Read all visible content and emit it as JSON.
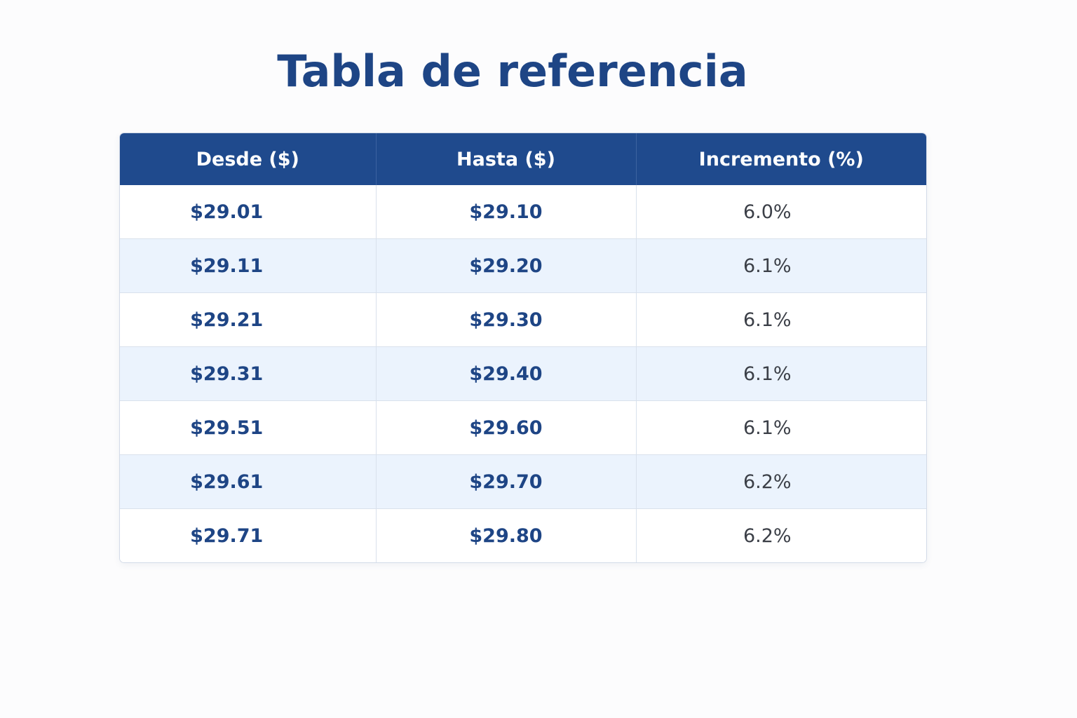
{
  "title": "Tabla de referencia",
  "colors": {
    "title": "#1e4585",
    "header_bg": "#1f4a8d",
    "header_text": "#ffffff",
    "stripe": "#ebf3fd",
    "value_text": "#1e4585",
    "percent_text": "#3b3f47"
  },
  "table": {
    "headers": [
      "Desde ($)",
      "Hasta ($)",
      "Incremento (%)"
    ],
    "rows": [
      [
        "$29.01",
        "$29.10",
        "6.0%"
      ],
      [
        "$29.11",
        "$29.20",
        "6.1%"
      ],
      [
        "$29.21",
        "$29.30",
        "6.1%"
      ],
      [
        "$29.31",
        "$29.40",
        "6.1%"
      ],
      [
        "$29.51",
        "$29.60",
        "6.1%"
      ],
      [
        "$29.61",
        "$29.70",
        "6.2%"
      ],
      [
        "$29.71",
        "$29.80",
        "6.2%"
      ]
    ]
  }
}
